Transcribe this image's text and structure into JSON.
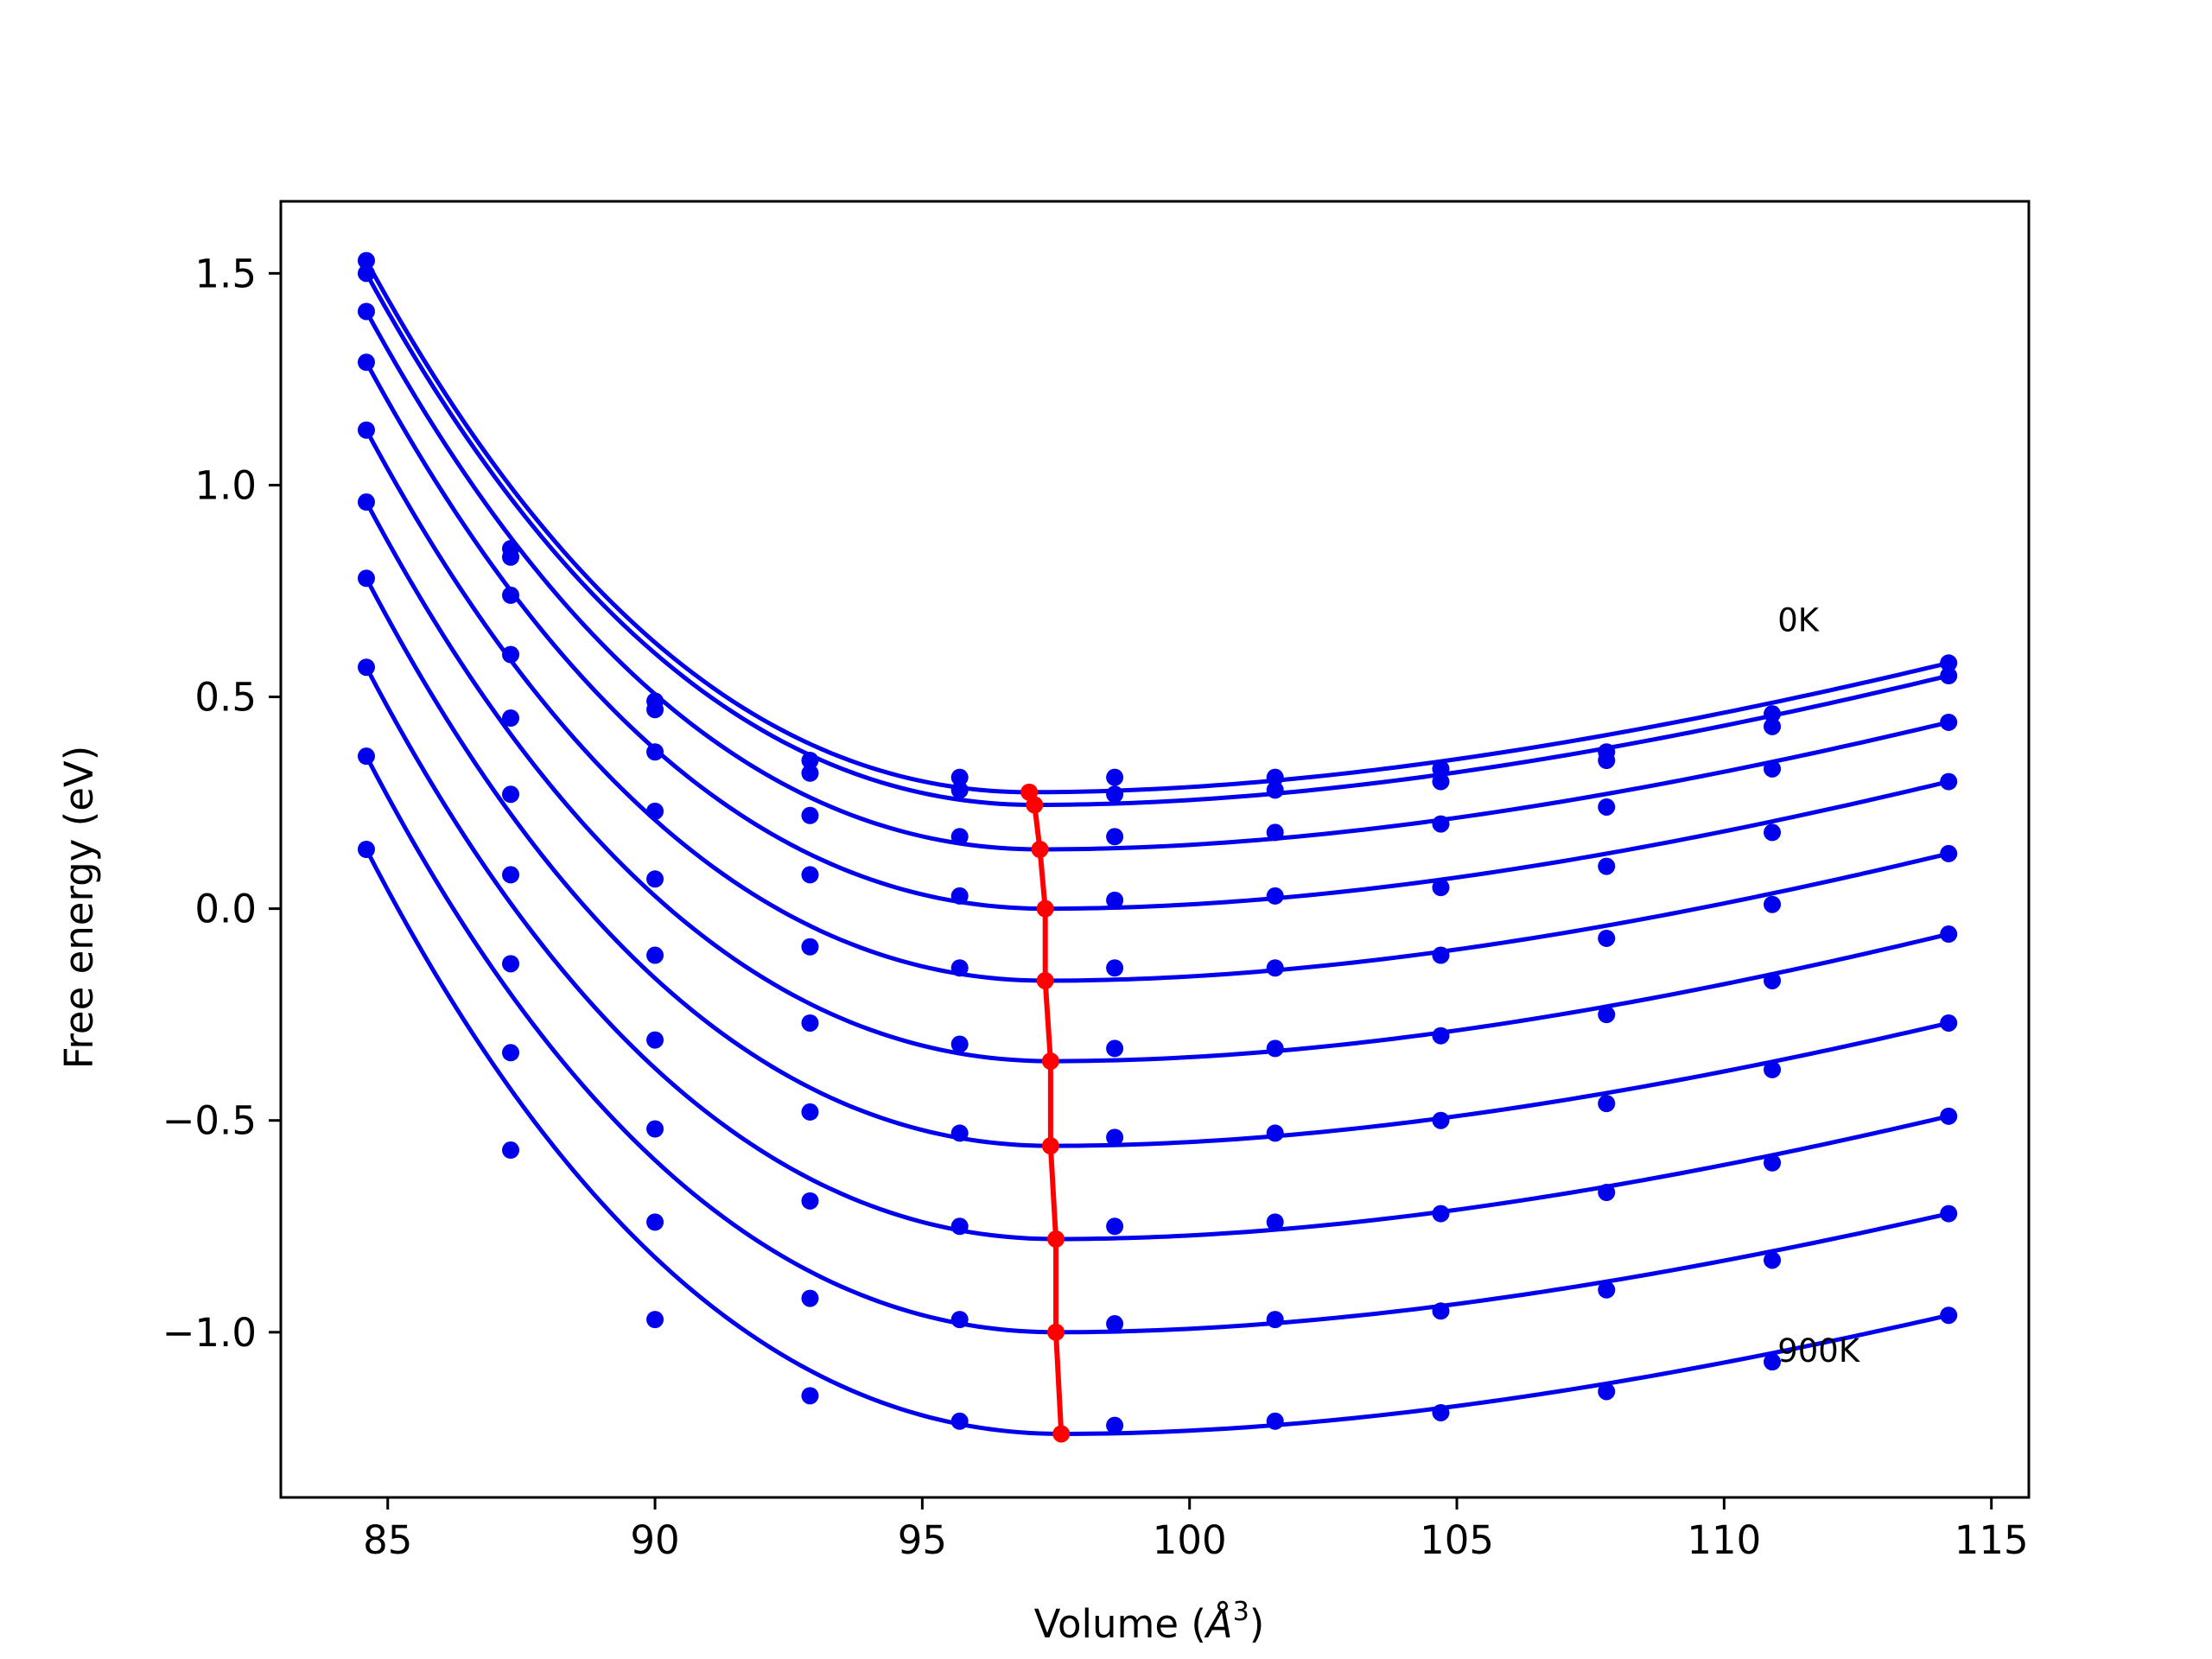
{
  "chart_data": {
    "type": "line",
    "title": "",
    "xlabel_prefix": "Volume (",
    "xlabel_symbol": "Å",
    "xlabel_exp": "3",
    "xlabel_suffix": ")",
    "ylabel": "Free energy (eV)",
    "xlim": [
      83.0,
      115.7
    ],
    "ylim": [
      -1.39,
      1.67
    ],
    "xticks": [
      85,
      90,
      95,
      100,
      105,
      110,
      115
    ],
    "xtick_labels": [
      "85",
      "90",
      "95",
      "100",
      "105",
      "110",
      "115"
    ],
    "yticks": [
      -1.0,
      -0.5,
      0.0,
      0.5,
      1.0,
      1.5
    ],
    "ytick_labels": [
      "−1.0",
      "−0.5",
      "0.0",
      "0.5",
      "1.0",
      "1.5"
    ],
    "grid": false,
    "colors": {
      "curves": "#0000ee",
      "equilibrium": "#ff0000",
      "axes": "#000000"
    },
    "x": [
      84.6,
      87.3,
      90.0,
      92.9,
      95.7,
      98.6,
      101.6,
      104.7,
      107.8,
      110.9,
      114.2
    ],
    "series": [
      {
        "values": [
          1.53,
          0.85,
          0.49,
          0.35,
          0.31,
          0.31,
          0.31,
          0.33,
          0.37,
          0.46,
          0.58
        ],
        "fit_min": [
          97.0,
          0.275
        ]
      },
      {
        "values": [
          1.5,
          0.83,
          0.47,
          0.32,
          0.28,
          0.27,
          0.28,
          0.3,
          0.35,
          0.43,
          0.55
        ],
        "fit_min": [
          97.1,
          0.245
        ]
      },
      {
        "values": [
          1.41,
          0.74,
          0.37,
          0.22,
          0.17,
          0.17,
          0.18,
          0.2,
          0.24,
          0.33,
          0.44
        ],
        "fit_min": [
          97.2,
          0.14
        ]
      },
      {
        "values": [
          1.29,
          0.6,
          0.23,
          0.08,
          0.03,
          0.02,
          0.03,
          0.05,
          0.1,
          0.18,
          0.3
        ],
        "fit_min": [
          97.3,
          0.0
        ]
      },
      {
        "values": [
          1.13,
          0.45,
          0.07,
          -0.09,
          -0.14,
          -0.14,
          -0.14,
          -0.11,
          -0.07,
          0.01,
          0.13
        ],
        "fit_min": [
          97.3,
          -0.17
        ]
      },
      {
        "values": [
          0.96,
          0.27,
          -0.11,
          -0.27,
          -0.32,
          -0.33,
          -0.33,
          -0.3,
          -0.25,
          -0.17,
          -0.06
        ],
        "fit_min": [
          97.4,
          -0.36
        ]
      },
      {
        "values": [
          0.78,
          0.08,
          -0.31,
          -0.48,
          -0.53,
          -0.54,
          -0.53,
          -0.5,
          -0.46,
          -0.38,
          -0.27
        ],
        "fit_min": [
          97.4,
          -0.56
        ]
      },
      {
        "values": [
          0.57,
          -0.13,
          -0.52,
          -0.69,
          -0.75,
          -0.75,
          -0.74,
          -0.72,
          -0.67,
          -0.6,
          -0.49
        ],
        "fit_min": [
          97.5,
          -0.78
        ]
      },
      {
        "values": [
          0.36,
          -0.34,
          -0.74,
          -0.92,
          -0.97,
          -0.98,
          -0.97,
          -0.95,
          -0.9,
          -0.83,
          -0.72
        ],
        "fit_min": [
          97.5,
          -1.0
        ]
      },
      {
        "values": [
          0.14,
          -0.57,
          -0.97,
          -1.15,
          -1.21,
          -1.22,
          -1.21,
          -1.19,
          -1.14,
          -1.07,
          -0.96
        ],
        "fit_min": [
          97.6,
          -1.24
        ]
      }
    ],
    "annotations": [
      {
        "text": "0K",
        "x": 111.0,
        "y": 0.655
      },
      {
        "text": "900K",
        "x": 111.0,
        "y": -1.07
      }
    ]
  }
}
